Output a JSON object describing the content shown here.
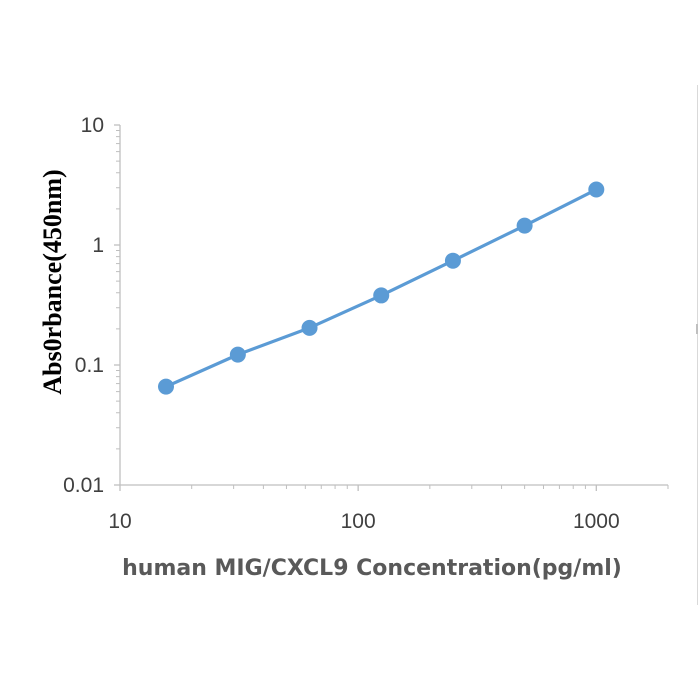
{
  "chart_data": {
    "type": "line",
    "xlabel": "human MIG/CXCL9 Concentration(pg/ml)",
    "ylabel": "Abs0rbance(450nm)",
    "x_scale": "log",
    "y_scale": "log",
    "xlim": [
      10,
      2000
    ],
    "ylim": [
      0.01,
      10
    ],
    "x_ticks": [
      10,
      100,
      1000
    ],
    "x_tick_labels": [
      "10",
      "100",
      "1000"
    ],
    "y_ticks": [
      0.01,
      0.1,
      1,
      10
    ],
    "y_tick_labels": [
      "0.01",
      "0.1",
      "1",
      "10"
    ],
    "grid": false,
    "legend": "none",
    "series": [
      {
        "x": [
          15.6,
          31.25,
          62.5,
          125,
          250,
          500,
          1000
        ],
        "y": [
          0.066,
          0.122,
          0.204,
          0.38,
          0.74,
          1.45,
          2.9
        ],
        "color": "#5b9bd5"
      }
    ]
  }
}
